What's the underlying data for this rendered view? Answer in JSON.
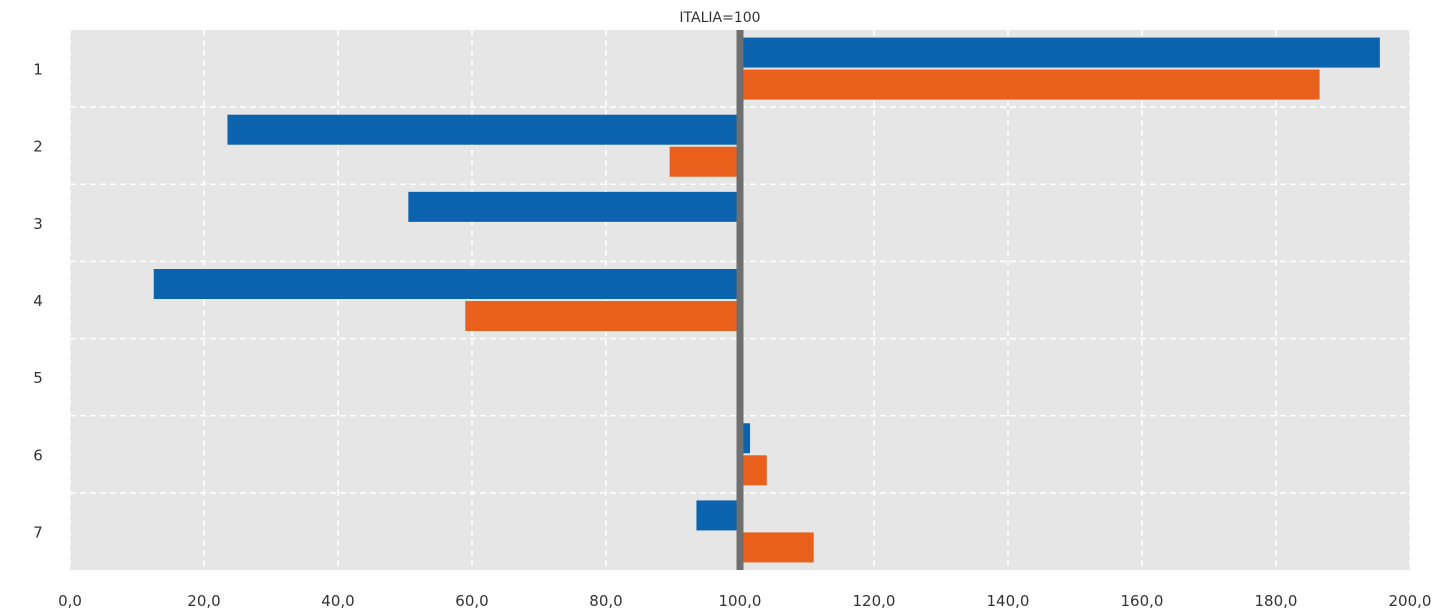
{
  "chart_data": {
    "type": "bar",
    "orientation": "horizontal",
    "title": "ITALIA=100",
    "categories": [
      "1",
      "2",
      "3",
      "4",
      "5",
      "6",
      "7"
    ],
    "baseline": 100,
    "xlim": [
      0,
      200
    ],
    "x_ticks": [
      "0,0",
      "20,0",
      "40,0",
      "60,0",
      "80,0",
      "100,0",
      "120,0",
      "140,0",
      "160,0",
      "180,0",
      "200,0"
    ],
    "series": [
      {
        "values": [
          195.5,
          23.5,
          50.5,
          12.5,
          99.5,
          101.5,
          93.5
        ],
        "color": "#0b63ad"
      },
      {
        "values": [
          186.5,
          89.5,
          100,
          59.0,
          100,
          104.0,
          111.0
        ],
        "color": "#e8601c"
      }
    ],
    "grid": true,
    "legend": "none",
    "colors": {
      "background": "#e6e6e6",
      "grid": "#ffffff",
      "baseline": "#6f6f6f"
    }
  }
}
